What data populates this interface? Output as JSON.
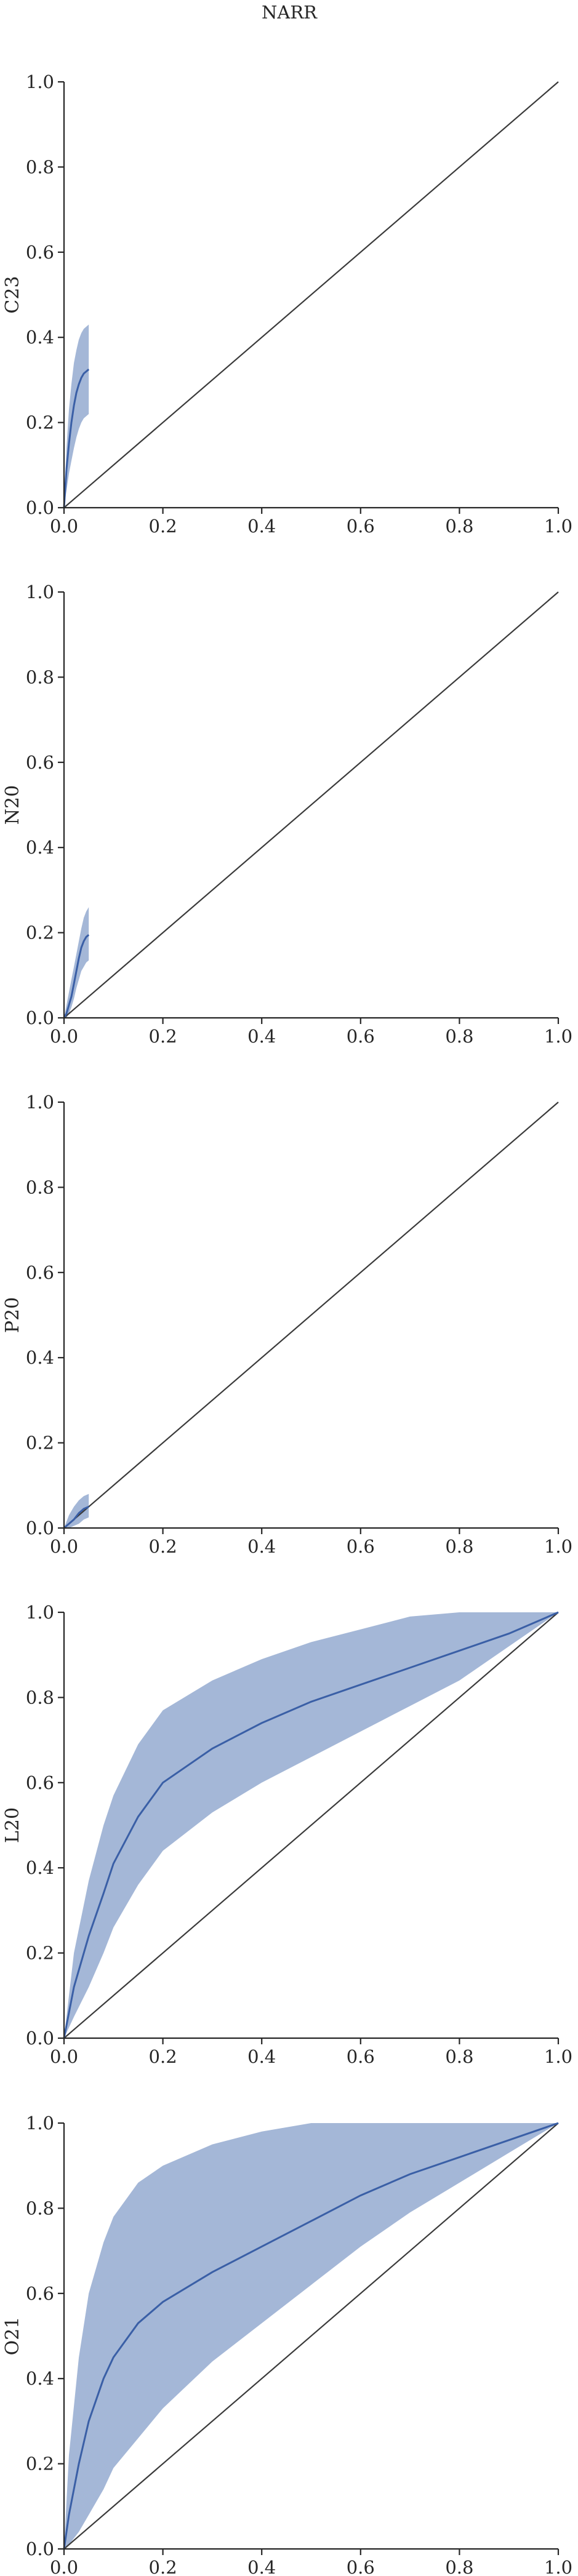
{
  "title": "NARR",
  "chart_data": [
    {
      "type": "area",
      "title": "",
      "xlabel": "",
      "ylabel": "C23",
      "xlim": [
        0,
        1
      ],
      "ylim": [
        0,
        1
      ],
      "xticks": [
        "0.0",
        "0.2",
        "0.4",
        "0.6",
        "0.8",
        "1.0"
      ],
      "yticks": [
        "0.0",
        "0.2",
        "0.4",
        "0.6",
        "0.8",
        "1.0"
      ],
      "diagonal": true,
      "grid": false,
      "mean": {
        "x": [
          0,
          0.005,
          0.01,
          0.015,
          0.02,
          0.025,
          0.03,
          0.035,
          0.04,
          0.045,
          0.05
        ],
        "y": [
          0,
          0.09,
          0.15,
          0.2,
          0.24,
          0.27,
          0.29,
          0.305,
          0.315,
          0.32,
          0.325
        ]
      },
      "lower": {
        "x": [
          0,
          0.005,
          0.01,
          0.015,
          0.02,
          0.025,
          0.03,
          0.035,
          0.04,
          0.045,
          0.05
        ],
        "y": [
          0,
          0.04,
          0.08,
          0.11,
          0.14,
          0.165,
          0.185,
          0.2,
          0.21,
          0.215,
          0.22
        ]
      },
      "upper": {
        "x": [
          0,
          0.005,
          0.01,
          0.015,
          0.02,
          0.025,
          0.03,
          0.035,
          0.04,
          0.045,
          0.05
        ],
        "y": [
          0,
          0.14,
          0.23,
          0.29,
          0.34,
          0.37,
          0.395,
          0.41,
          0.42,
          0.425,
          0.43
        ]
      }
    },
    {
      "type": "area",
      "title": "",
      "xlabel": "",
      "ylabel": "N20",
      "xlim": [
        0,
        1
      ],
      "ylim": [
        0,
        1
      ],
      "xticks": [
        "0.0",
        "0.2",
        "0.4",
        "0.6",
        "0.8",
        "1.0"
      ],
      "yticks": [
        "0.0",
        "0.2",
        "0.4",
        "0.6",
        "0.8",
        "1.0"
      ],
      "diagonal": true,
      "grid": false,
      "mean": {
        "x": [
          0,
          0.005,
          0.01,
          0.015,
          0.02,
          0.025,
          0.03,
          0.035,
          0.04,
          0.045,
          0.05
        ],
        "y": [
          0,
          0.01,
          0.03,
          0.05,
          0.08,
          0.11,
          0.14,
          0.165,
          0.18,
          0.19,
          0.195
        ]
      },
      "lower": {
        "x": [
          0,
          0.005,
          0.01,
          0.015,
          0.02,
          0.025,
          0.03,
          0.035,
          0.04,
          0.045,
          0.05
        ],
        "y": [
          0,
          0.0,
          0.01,
          0.025,
          0.045,
          0.07,
          0.09,
          0.11,
          0.12,
          0.13,
          0.135
        ]
      },
      "upper": {
        "x": [
          0,
          0.005,
          0.01,
          0.015,
          0.02,
          0.025,
          0.03,
          0.035,
          0.04,
          0.045,
          0.05
        ],
        "y": [
          0,
          0.03,
          0.06,
          0.09,
          0.12,
          0.15,
          0.18,
          0.21,
          0.235,
          0.25,
          0.26
        ]
      }
    },
    {
      "type": "area",
      "title": "",
      "xlabel": "",
      "ylabel": "P20",
      "xlim": [
        0,
        1
      ],
      "ylim": [
        0,
        1
      ],
      "xticks": [
        "0.0",
        "0.2",
        "0.4",
        "0.6",
        "0.8",
        "1.0"
      ],
      "yticks": [
        "0.0",
        "0.2",
        "0.4",
        "0.6",
        "0.8",
        "1.0"
      ],
      "diagonal": true,
      "grid": false,
      "mean": {
        "x": [
          0,
          0.01,
          0.02,
          0.03,
          0.04,
          0.05
        ],
        "y": [
          0,
          0.01,
          0.02,
          0.035,
          0.045,
          0.05
        ]
      },
      "lower": {
        "x": [
          0,
          0.01,
          0.02,
          0.03,
          0.04,
          0.05
        ],
        "y": [
          0,
          0.0,
          0.005,
          0.01,
          0.02,
          0.025
        ]
      },
      "upper": {
        "x": [
          0,
          0.01,
          0.02,
          0.03,
          0.04,
          0.05
        ],
        "y": [
          0,
          0.03,
          0.05,
          0.065,
          0.075,
          0.08
        ]
      }
    },
    {
      "type": "area",
      "title": "",
      "xlabel": "",
      "ylabel": "L20",
      "xlim": [
        0,
        1
      ],
      "ylim": [
        0,
        1
      ],
      "xticks": [
        "0.0",
        "0.2",
        "0.4",
        "0.6",
        "0.8",
        "1.0"
      ],
      "yticks": [
        "0.0",
        "0.2",
        "0.4",
        "0.6",
        "0.8",
        "1.0"
      ],
      "diagonal": true,
      "grid": false,
      "mean": {
        "x": [
          0,
          0.02,
          0.05,
          0.08,
          0.1,
          0.15,
          0.2,
          0.3,
          0.4,
          0.5,
          0.6,
          0.7,
          0.8,
          0.9,
          1.0
        ],
        "y": [
          0,
          0.12,
          0.24,
          0.34,
          0.41,
          0.52,
          0.6,
          0.68,
          0.74,
          0.79,
          0.83,
          0.87,
          0.91,
          0.95,
          1.0
        ]
      },
      "lower": {
        "x": [
          0,
          0.02,
          0.05,
          0.08,
          0.1,
          0.15,
          0.2,
          0.3,
          0.4,
          0.5,
          0.6,
          0.7,
          0.8,
          0.9,
          1.0
        ],
        "y": [
          0,
          0.05,
          0.12,
          0.2,
          0.26,
          0.36,
          0.44,
          0.53,
          0.6,
          0.66,
          0.72,
          0.78,
          0.84,
          0.92,
          1.0
        ]
      },
      "upper": {
        "x": [
          0,
          0.02,
          0.05,
          0.08,
          0.1,
          0.15,
          0.2,
          0.3,
          0.4,
          0.5,
          0.6,
          0.7,
          0.8,
          0.9,
          1.0
        ],
        "y": [
          0,
          0.2,
          0.37,
          0.5,
          0.57,
          0.69,
          0.77,
          0.84,
          0.89,
          0.93,
          0.96,
          0.99,
          1.0,
          1.0,
          1.0
        ]
      }
    },
    {
      "type": "area",
      "title": "",
      "xlabel": "",
      "ylabel": "O21",
      "xlim": [
        0,
        1
      ],
      "ylim": [
        0,
        1
      ],
      "xticks": [
        "0.0",
        "0.2",
        "0.4",
        "0.6",
        "0.8",
        "1.0"
      ],
      "yticks": [
        "0.0",
        "0.2",
        "0.4",
        "0.6",
        "0.8",
        "1.0"
      ],
      "diagonal": true,
      "grid": false,
      "mean": {
        "x": [
          0,
          0.01,
          0.03,
          0.05,
          0.08,
          0.1,
          0.15,
          0.2,
          0.3,
          0.4,
          0.5,
          0.6,
          0.7,
          0.8,
          0.9,
          1.0
        ],
        "y": [
          0,
          0.08,
          0.2,
          0.3,
          0.4,
          0.45,
          0.53,
          0.58,
          0.65,
          0.71,
          0.77,
          0.83,
          0.88,
          0.92,
          0.96,
          1.0
        ]
      },
      "lower": {
        "x": [
          0,
          0.01,
          0.03,
          0.05,
          0.08,
          0.1,
          0.15,
          0.2,
          0.3,
          0.4,
          0.5,
          0.6,
          0.7,
          0.8,
          0.9,
          1.0
        ],
        "y": [
          0,
          0.01,
          0.04,
          0.08,
          0.14,
          0.19,
          0.26,
          0.33,
          0.44,
          0.53,
          0.62,
          0.71,
          0.79,
          0.86,
          0.93,
          1.0
        ]
      },
      "upper": {
        "x": [
          0,
          0.01,
          0.03,
          0.05,
          0.08,
          0.1,
          0.15,
          0.2,
          0.3,
          0.4,
          0.5,
          0.6,
          0.7,
          0.8,
          0.9,
          1.0
        ],
        "y": [
          0,
          0.22,
          0.45,
          0.6,
          0.72,
          0.78,
          0.86,
          0.9,
          0.95,
          0.98,
          1.0,
          1.0,
          1.0,
          1.0,
          1.0,
          1.0
        ]
      }
    }
  ]
}
